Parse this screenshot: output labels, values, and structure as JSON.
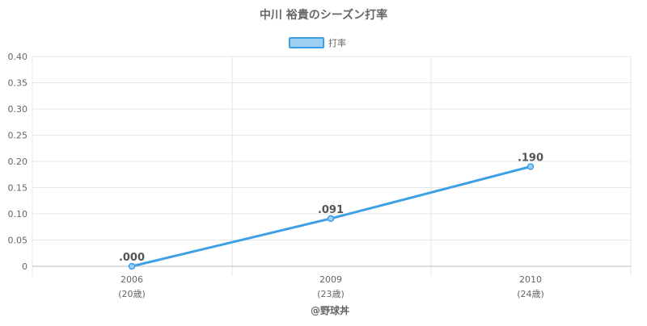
{
  "chart_data": {
    "type": "line",
    "title": "中川 裕貴のシーズン打率",
    "legend": {
      "position": "top",
      "label": "打率"
    },
    "categories": [
      "2006",
      "2009",
      "2010"
    ],
    "category_sublabels": [
      "(20歳)",
      "(23歳)",
      "(24歳)"
    ],
    "series": [
      {
        "name": "打率",
        "values": [
          0.0,
          0.091,
          0.19
        ],
        "data_labels": [
          ".000",
          ".091",
          ".190"
        ]
      }
    ],
    "ylim": [
      0,
      0.4
    ],
    "yticks": [
      0,
      0.05,
      0.1,
      0.15,
      0.2,
      0.25,
      0.3,
      0.35,
      0.4
    ],
    "ytick_labels": [
      "0",
      "0.05",
      "0.10",
      "0.15",
      "0.20",
      "0.25",
      "0.30",
      "0.35",
      "0.40"
    ],
    "grid": true,
    "colors": {
      "line": "#3ea0e4",
      "legend_fill": "#9fd0f4",
      "grid": "#e6e6e6",
      "axis": "#bbbbbb",
      "text": "#666666"
    }
  },
  "footer": {
    "credit": "@野球丼"
  }
}
